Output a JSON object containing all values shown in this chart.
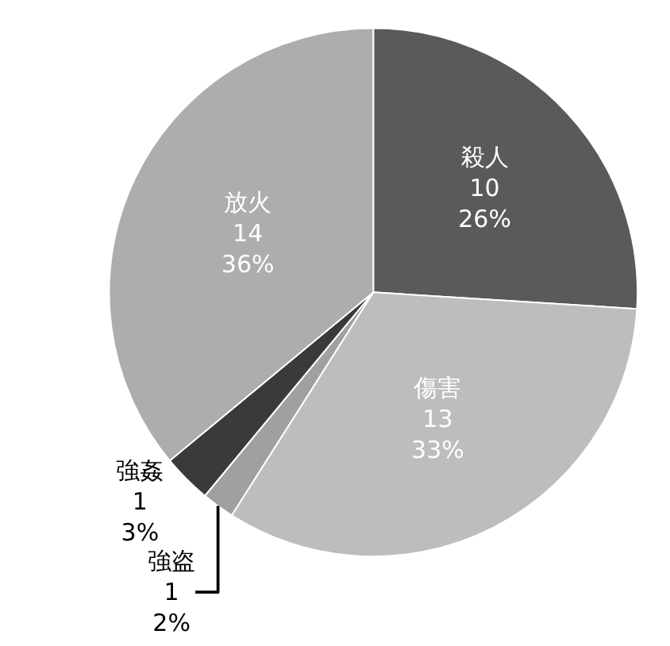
{
  "chart_data": {
    "type": "pie",
    "categories": [
      "殺人",
      "傷害",
      "強盗",
      "強姦",
      "放火"
    ],
    "values": [
      26,
      33,
      2,
      3,
      36
    ],
    "value_labels": [
      "10\n26%",
      "13\n33%",
      "1\n2%",
      "1\n3%",
      "14\n36%"
    ],
    "colors": [
      "#5a5a5a",
      "#bdbdbd",
      "#a0a0a0",
      "#3a3a3a",
      "#adadad"
    ],
    "data_labels": true,
    "legend": false
  }
}
